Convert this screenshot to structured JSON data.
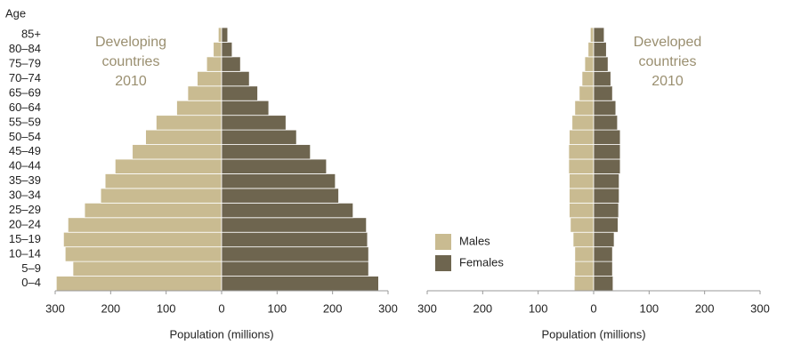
{
  "chart_data": [
    {
      "type": "pyramid",
      "title": [
        "Developing",
        "countries",
        "2010"
      ],
      "y_label": "Age",
      "x_label": "Population (millions)",
      "categories": [
        "0–4",
        "5–9",
        "10–14",
        "15–19",
        "20–24",
        "25–29",
        "30–34",
        "35–39",
        "40–44",
        "45–49",
        "50–54",
        "55–59",
        "60–64",
        "65–69",
        "70–74",
        "75–79",
        "80–84",
        "85+"
      ],
      "series": [
        {
          "color": "#c9bb91",
          "side": "left",
          "values": [
            298,
            268,
            282,
            285,
            277,
            247,
            218,
            210,
            192,
            161,
            137,
            118,
            81,
            61,
            44,
            27,
            15,
            6
          ]
        },
        {
          "color": "#6e654f",
          "side": "right",
          "values": [
            283,
            265,
            265,
            263,
            261,
            237,
            211,
            205,
            189,
            160,
            135,
            116,
            85,
            65,
            50,
            34,
            19,
            11
          ]
        }
      ],
      "xlim": [
        -300,
        300
      ],
      "xticks": [
        {
          "value": -300,
          "label": "300"
        },
        {
          "value": -200,
          "label": "200"
        },
        {
          "value": -100,
          "label": "100"
        },
        0,
        100,
        200,
        300
      ]
    },
    {
      "type": "pyramid",
      "title": [
        "Developed",
        "countries",
        "2010"
      ],
      "x_label": "Population (millions)",
      "series": [
        {
          "name": "Males",
          "color": "#c9bb91",
          "side": "left",
          "values": [
            35,
            34,
            34,
            37,
            42,
            44,
            44,
            44,
            45,
            45,
            44,
            39,
            34,
            26,
            21,
            16,
            10,
            6
          ]
        },
        {
          "name": "Females",
          "color": "#6e654f",
          "side": "right",
          "values": [
            35,
            34,
            34,
            37,
            44,
            45,
            46,
            46,
            48,
            48,
            48,
            43,
            40,
            34,
            31,
            26,
            23,
            19
          ]
        }
      ],
      "xlim": [
        -300,
        300
      ],
      "xticks": [
        {
          "value": -300,
          "label": "300"
        },
        {
          "value": -200,
          "label": "200"
        },
        {
          "value": -100,
          "label": "100"
        },
        0,
        100,
        200,
        300
      ],
      "legend": "bottom-left"
    }
  ]
}
